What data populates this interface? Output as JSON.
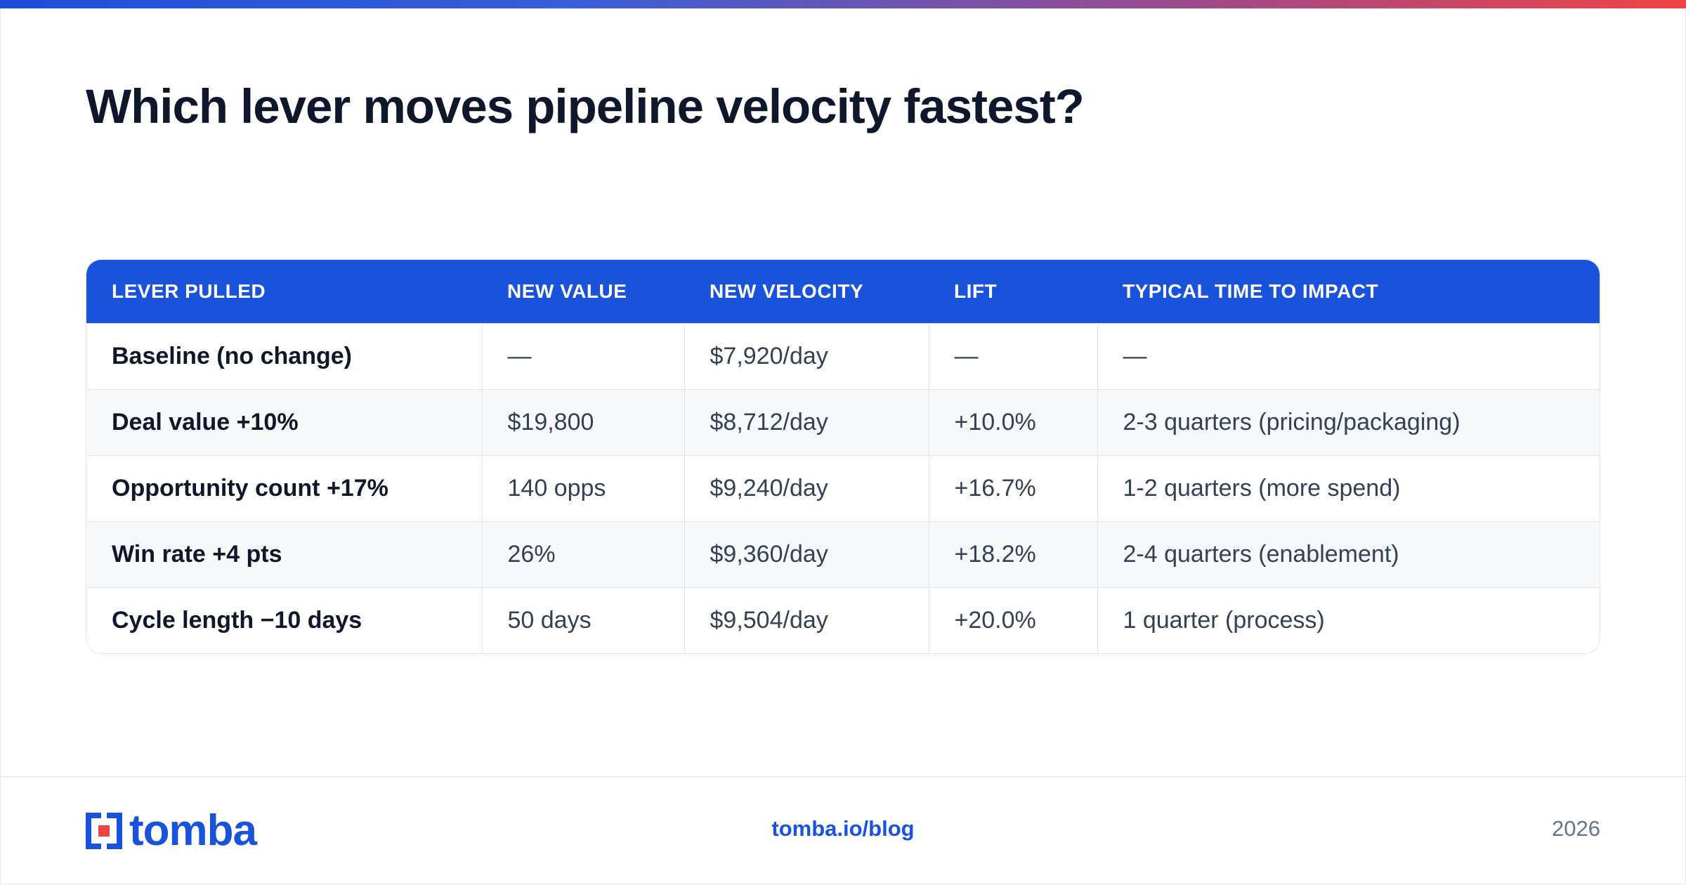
{
  "title": "Which lever moves pipeline velocity fastest?",
  "table": {
    "headers": [
      "LEVER PULLED",
      "NEW VALUE",
      "NEW VELOCITY",
      "LIFT",
      "TYPICAL TIME TO IMPACT"
    ],
    "rows": [
      [
        "Baseline (no change)",
        "—",
        "$7,920/day",
        "—",
        "—"
      ],
      [
        "Deal value +10%",
        "$19,800",
        "$8,712/day",
        "+10.0%",
        "2-3 quarters (pricing/packaging)"
      ],
      [
        "Opportunity count +17%",
        "140 opps",
        "$9,240/day",
        "+16.7%",
        "1-2 quarters (more spend)"
      ],
      [
        "Win rate +4 pts",
        "26%",
        "$9,360/day",
        "+18.2%",
        "2-4 quarters (enablement)"
      ],
      [
        "Cycle length −10 days",
        "50 days",
        "$9,504/day",
        "+20.0%",
        "1 quarter (process)"
      ]
    ]
  },
  "footer": {
    "logo_text": "tomba",
    "url": "tomba.io/blog",
    "year": "2026"
  },
  "colors": {
    "brand": "#1a53db",
    "accent_red": "#ef4444",
    "text_dark": "#0f172a",
    "text_body": "#334155"
  }
}
